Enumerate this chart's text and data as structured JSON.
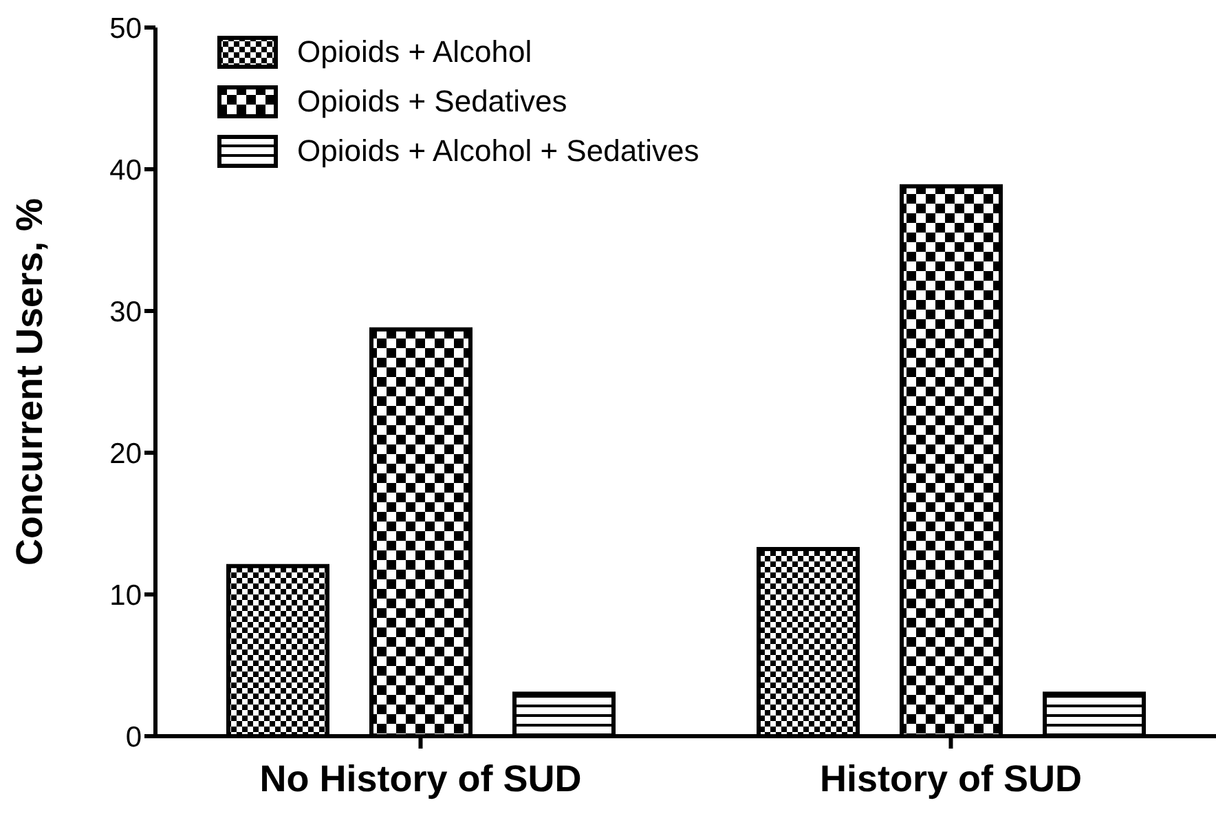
{
  "chart_data": {
    "type": "bar",
    "ylabel": "Concurrent Users, %",
    "categories": [
      "No History of SUD",
      "History of SUD"
    ],
    "series": [
      {
        "name": "Opioids + Alcohol",
        "color": "#000000",
        "values": [
          12,
          13.2
        ]
      },
      {
        "name": "Opioids + Sedatives",
        "color": "#000000",
        "values": [
          28.7,
          38.8
        ]
      },
      {
        "name": "Opioids + Alcohol + Sedatives",
        "color": "#000000",
        "values": [
          3,
          3
        ]
      }
    ],
    "ylim": [
      0,
      50
    ],
    "yticks": [
      0,
      10,
      20,
      30,
      40,
      50
    ],
    "legend": "top left",
    "grid": false
  }
}
